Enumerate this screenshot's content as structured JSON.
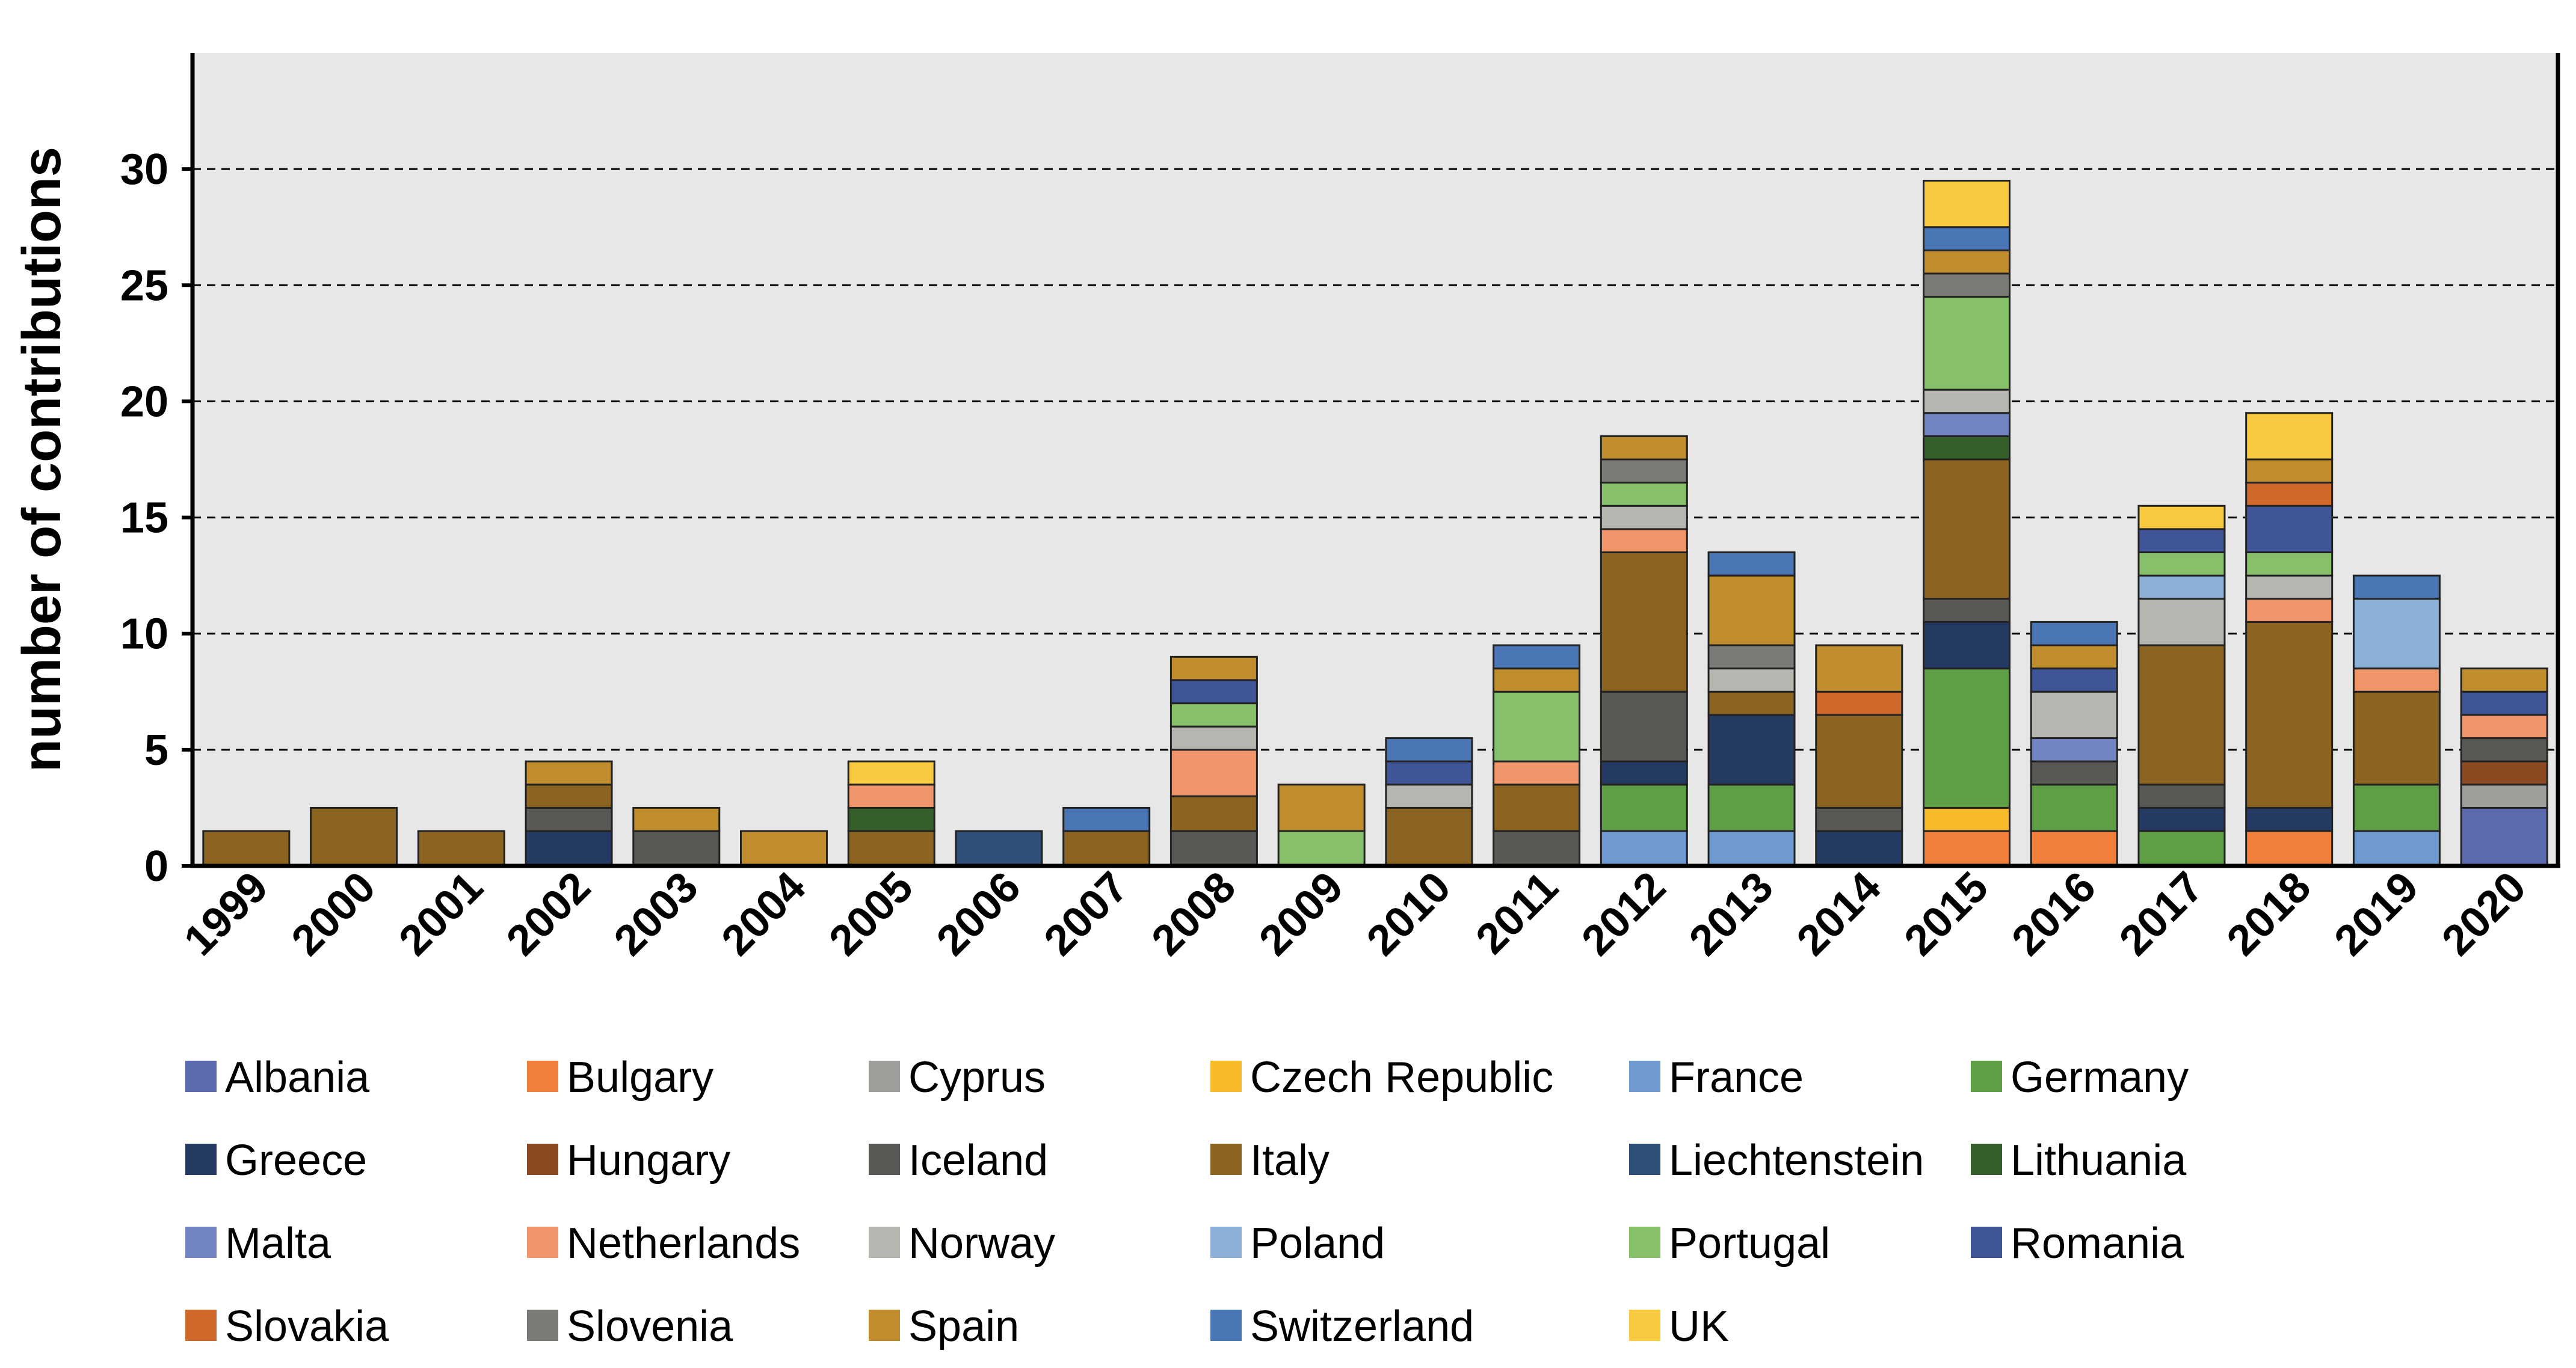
{
  "chart_data": {
    "type": "bar",
    "stacked": true,
    "title": "",
    "xlabel": "",
    "ylabel": "number of contributions",
    "ylim": [
      0,
      35
    ],
    "yticks": [
      "0",
      "5",
      "10",
      "15",
      "20",
      "25",
      "30"
    ],
    "grid": "dashed horizontal",
    "categories": [
      "1999",
      "2000",
      "2001",
      "2002",
      "2003",
      "2004",
      "2005",
      "2006",
      "2007",
      "2008",
      "2009",
      "2010",
      "2011",
      "2012",
      "2013",
      "2014",
      "2015",
      "2016",
      "2017",
      "2018",
      "2019",
      "2020"
    ],
    "series": [
      {
        "name": "Albania",
        "color": "#5C6BB0",
        "values": [
          0,
          0,
          0,
          0,
          0,
          0,
          0,
          0,
          0,
          0,
          0,
          0,
          0,
          0,
          0,
          0,
          0,
          0,
          0,
          0,
          0,
          2.5
        ]
      },
      {
        "name": "Bulgary",
        "color": "#F07F3A",
        "values": [
          0,
          0,
          0,
          0,
          0,
          0,
          0,
          0,
          0,
          0,
          0,
          0,
          0,
          0,
          0,
          0,
          1.5,
          1.5,
          0,
          1.5,
          0,
          0
        ]
      },
      {
        "name": "Cyprus",
        "color": "#A09E9A",
        "values": [
          0,
          0,
          0,
          0,
          0,
          0,
          0,
          0,
          0,
          0,
          0,
          0,
          0,
          0,
          0,
          0,
          0,
          0,
          0,
          0,
          0,
          1
        ]
      },
      {
        "name": "Czech Republic",
        "color": "#F6BA2B",
        "values": [
          0,
          0,
          0,
          0,
          0,
          0,
          0,
          0,
          0,
          0,
          0,
          0,
          0,
          0,
          0,
          0,
          1,
          0,
          0,
          0,
          0,
          0
        ]
      },
      {
        "name": "France",
        "color": "#6F9AD1",
        "values": [
          0,
          0,
          0,
          0,
          0,
          0,
          0,
          0,
          0,
          0,
          0,
          0,
          0,
          1.5,
          1.5,
          0,
          0,
          0,
          0,
          0,
          1.5,
          0
        ]
      },
      {
        "name": "Germany",
        "color": "#5E9E44",
        "values": [
          0,
          0,
          0,
          0,
          0,
          0,
          0,
          0,
          0,
          0,
          0,
          0,
          0,
          2,
          2,
          0,
          6,
          2,
          1.5,
          0,
          2,
          0
        ]
      },
      {
        "name": "Greece",
        "color": "#243A63",
        "values": [
          0,
          0,
          0,
          1.5,
          0,
          0,
          0,
          0,
          0,
          0,
          0,
          0,
          0,
          1,
          3,
          1.5,
          2,
          0,
          1,
          1,
          0,
          0
        ]
      },
      {
        "name": "Hungary",
        "color": "#8D4A22",
        "values": [
          0,
          0,
          0,
          0,
          0,
          0,
          0,
          0,
          0,
          0,
          0,
          0,
          0,
          0,
          0,
          0,
          0,
          0,
          0,
          0,
          0,
          1
        ]
      },
      {
        "name": "Iceland",
        "color": "#5A5854",
        "values": [
          0,
          0,
          0,
          1,
          1.5,
          0,
          0,
          0,
          0,
          1.5,
          0,
          0,
          1.5,
          3,
          0,
          1,
          1,
          1,
          1,
          0,
          0,
          1
        ]
      },
      {
        "name": "Italy",
        "color": "#8A6420",
        "values": [
          1.5,
          2.5,
          1.5,
          1,
          0,
          0,
          1.5,
          0,
          1.5,
          1.5,
          0,
          2.5,
          2,
          6,
          1,
          4,
          6,
          0,
          6,
          8,
          4,
          0
        ]
      },
      {
        "name": "Liechtenstein",
        "color": "#2E4F78",
        "values": [
          0,
          0,
          0,
          0,
          0,
          0,
          0,
          1.5,
          0,
          0,
          0,
          0,
          0,
          0,
          0,
          0,
          0,
          0,
          0,
          0,
          0,
          0
        ]
      },
      {
        "name": "Lithuania",
        "color": "#365E2A",
        "values": [
          0,
          0,
          0,
          0,
          0,
          0,
          1,
          0,
          0,
          0,
          0,
          0,
          0,
          0,
          0,
          0,
          1,
          0,
          0,
          0,
          0,
          0
        ]
      },
      {
        "name": "Malta",
        "color": "#7384C3",
        "values": [
          0,
          0,
          0,
          0,
          0,
          0,
          0,
          0,
          0,
          0,
          0,
          0,
          0,
          0,
          0,
          0,
          1,
          1,
          0,
          0,
          0,
          0
        ]
      },
      {
        "name": "Netherlands",
        "color": "#F0946A",
        "values": [
          0,
          0,
          0,
          0,
          0,
          0,
          1,
          0,
          0,
          2,
          0,
          0,
          1,
          1,
          0,
          0,
          0,
          0,
          0,
          1,
          1,
          1
        ]
      },
      {
        "name": "Norway",
        "color": "#B7B5B0",
        "values": [
          0,
          0,
          0,
          0,
          0,
          0,
          0,
          0,
          0,
          1,
          0,
          1,
          0,
          1,
          1,
          0,
          1,
          2,
          2,
          1,
          0,
          0
        ]
      },
      {
        "name": "Poland",
        "color": "#8DB0D9",
        "values": [
          0,
          0,
          0,
          0,
          0,
          0,
          0,
          0,
          0,
          0,
          0,
          0,
          0,
          0,
          0,
          0,
          0,
          0,
          1,
          0,
          3,
          0
        ]
      },
      {
        "name": "Portugal",
        "color": "#86C06A",
        "values": [
          0,
          0,
          0,
          0,
          0,
          0,
          0,
          0,
          0,
          1,
          1.5,
          0,
          3,
          1,
          0,
          0,
          4,
          0,
          1,
          1,
          0,
          0
        ]
      },
      {
        "name": "Romania",
        "color": "#3F5598",
        "values": [
          0,
          0,
          0,
          0,
          0,
          0,
          0,
          0,
          0,
          1,
          0,
          1,
          0,
          0,
          0,
          0,
          0,
          1,
          1,
          2,
          0,
          1
        ]
      },
      {
        "name": "Slovakia",
        "color": "#D0682C",
        "values": [
          0,
          0,
          0,
          0,
          0,
          0,
          0,
          0,
          0,
          0,
          0,
          0,
          0,
          0,
          0,
          1,
          0,
          0,
          0,
          1,
          0,
          0
        ]
      },
      {
        "name": "Slovenia",
        "color": "#7C7A76",
        "values": [
          0,
          0,
          0,
          0,
          0,
          0,
          0,
          0,
          0,
          0,
          0,
          0,
          0,
          1,
          1,
          0,
          1,
          0,
          0,
          0,
          0,
          0
        ]
      },
      {
        "name": "Spain",
        "color": "#C08D2D",
        "values": [
          0,
          0,
          0,
          1,
          1,
          1.5,
          0,
          0,
          0,
          1,
          2,
          0,
          1,
          1,
          3,
          2,
          1,
          1,
          0,
          1,
          0,
          1
        ]
      },
      {
        "name": "Switzerland",
        "color": "#4A76B5",
        "values": [
          0,
          0,
          0,
          0,
          0,
          0,
          0,
          0,
          1,
          0,
          0,
          1,
          1,
          0,
          1,
          0,
          1,
          1,
          0,
          0,
          1,
          0
        ]
      },
      {
        "name": "UK",
        "color": "#F9C940",
        "values": [
          0,
          0,
          0,
          0,
          0,
          0,
          1,
          0,
          0,
          0,
          0,
          0,
          0,
          0,
          0,
          0,
          2,
          0,
          1,
          2,
          0,
          0
        ]
      }
    ]
  }
}
